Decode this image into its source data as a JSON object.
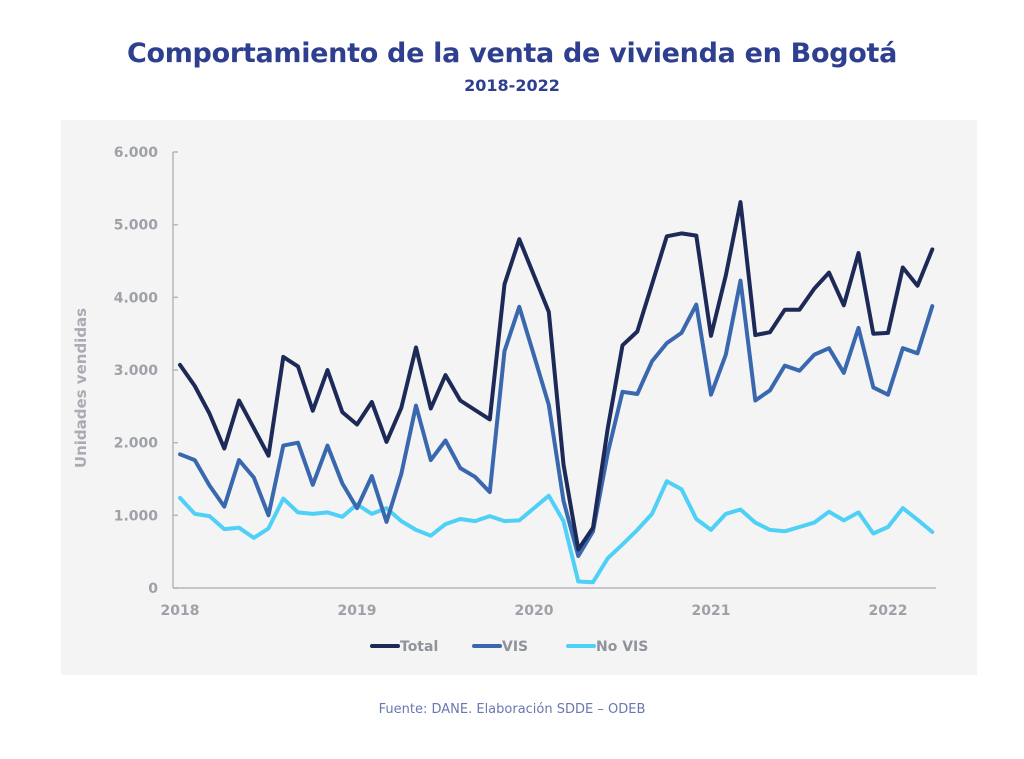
{
  "chart_data": {
    "type": "line",
    "title": "Comportamiento de la venta de vivienda en Bogotá",
    "subtitle": "2018-2022",
    "xlabel": "",
    "ylabel": "Unidades vendidas",
    "ylim": [
      0,
      6000
    ],
    "yticks": [
      0,
      1000,
      2000,
      3000,
      4000,
      5000,
      6000
    ],
    "ytick_labels": [
      "0",
      "1.000",
      "2.000",
      "3.000",
      "4.000",
      "5.000",
      "6.000"
    ],
    "xtick_labels": [
      "2018",
      "2019",
      "2020",
      "2021",
      "2022"
    ],
    "x_start": "2018-01",
    "x_frequency": "monthly",
    "x_count": 52,
    "grid": false,
    "legend_position": "bottom",
    "series": [
      {
        "name": "Total",
        "color": "#1d2a57",
        "values": [
          3070,
          2780,
          2400,
          1920,
          2580,
          2200,
          1820,
          3180,
          3050,
          2440,
          3000,
          2420,
          2250,
          2560,
          2010,
          2480,
          3310,
          2470,
          2930,
          2580,
          2450,
          2320,
          4180,
          4800,
          4300,
          3800,
          1700,
          530,
          830,
          2200,
          3340,
          3530,
          4180,
          4840,
          4880,
          4850,
          3470,
          4300,
          5310,
          3480,
          3520,
          3830,
          3830,
          4120,
          4340,
          3890,
          4610,
          3500,
          3510,
          4410,
          4160,
          4660
        ]
      },
      {
        "name": "VIS",
        "color": "#3a68ae",
        "values": [
          1840,
          1760,
          1410,
          1120,
          1760,
          1520,
          1000,
          1960,
          2000,
          1420,
          1960,
          1440,
          1100,
          1540,
          910,
          1570,
          2510,
          1760,
          2030,
          1650,
          1530,
          1320,
          3260,
          3870,
          3200,
          2520,
          1200,
          440,
          780,
          1860,
          2700,
          2670,
          3120,
          3370,
          3510,
          3900,
          2660,
          3210,
          4230,
          2580,
          2720,
          3060,
          2990,
          3210,
          3300,
          2960,
          3580,
          2760,
          2660,
          3300,
          3230,
          3880
        ]
      },
      {
        "name": "No VIS",
        "color": "#4fd0f7",
        "values": [
          1240,
          1020,
          990,
          810,
          830,
          690,
          820,
          1230,
          1040,
          1020,
          1040,
          980,
          1150,
          1020,
          1100,
          920,
          800,
          720,
          880,
          950,
          920,
          990,
          920,
          930,
          1100,
          1270,
          920,
          90,
          80,
          410,
          600,
          800,
          1020,
          1470,
          1360,
          950,
          800,
          1020,
          1080,
          900,
          800,
          780,
          840,
          900,
          1050,
          930,
          1040,
          750,
          840,
          1100,
          940,
          770
        ]
      }
    ]
  },
  "footer": {
    "source": "Fuente: DANE. Elaboración SDDE – ODEB"
  }
}
